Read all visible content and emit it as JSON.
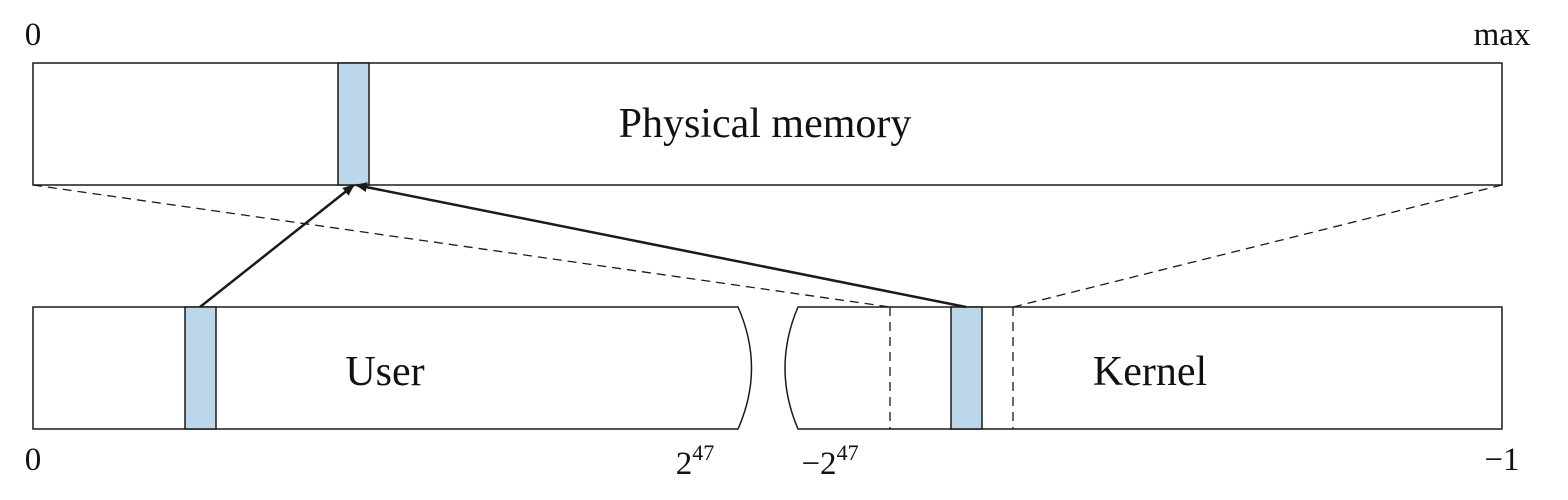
{
  "colors": {
    "stroke": "#1a1a1a",
    "page_fill": "#bcd7ea",
    "background": "#ffffff"
  },
  "physical": {
    "label": "Physical memory",
    "start_label": "0",
    "end_label": "max"
  },
  "virtual": {
    "user_label": "User",
    "kernel_label": "Kernel",
    "start_label": "0",
    "user_end_base": "2",
    "user_end_exp": "47",
    "kernel_start_prefix": "−2",
    "kernel_start_exp": "47",
    "end_label": "−1"
  },
  "mappings": [
    {
      "from": "user-page",
      "to": "physical-page"
    },
    {
      "from": "kernel-page",
      "to": "physical-page"
    }
  ]
}
